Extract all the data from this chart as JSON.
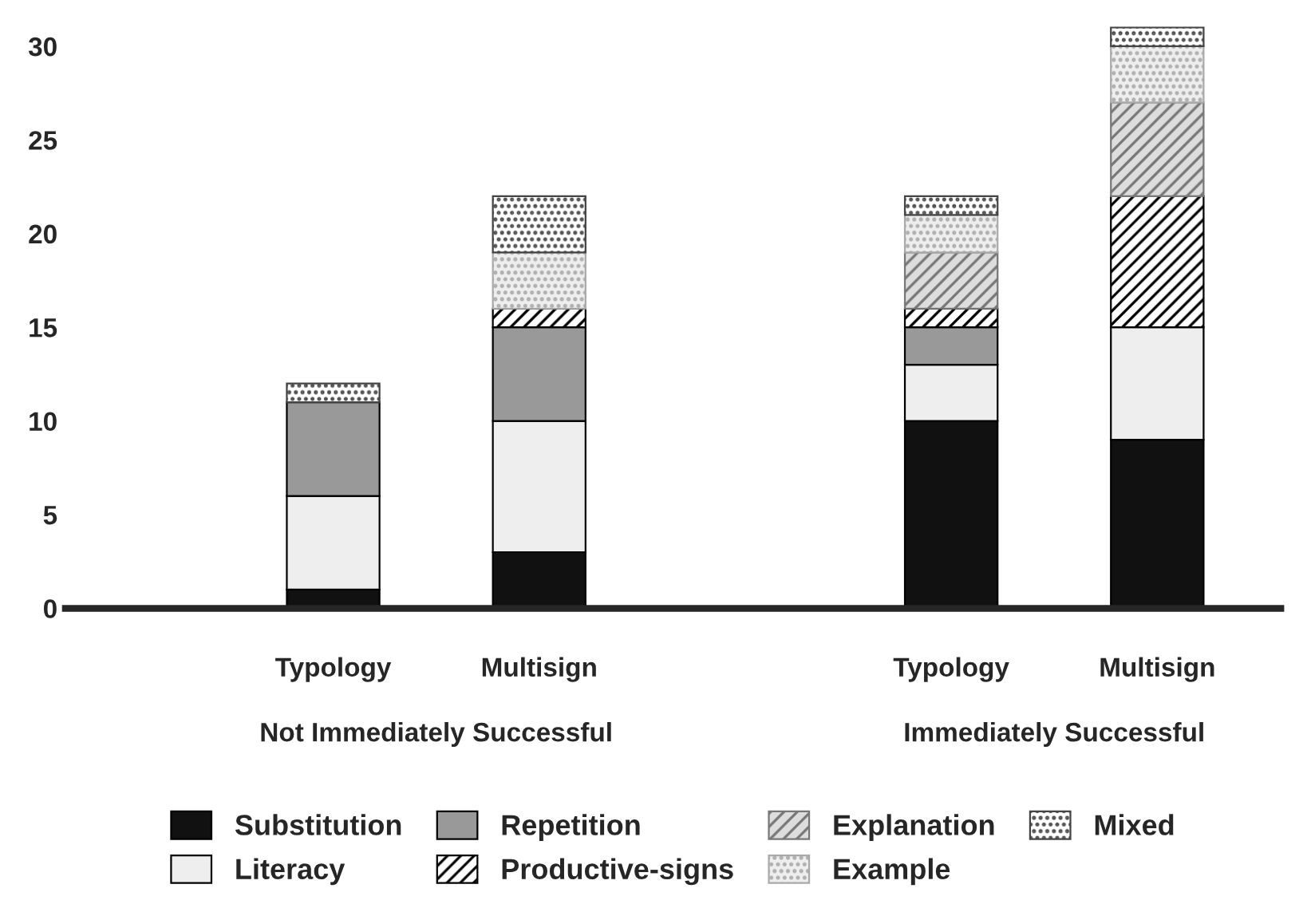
{
  "chart_data": {
    "type": "bar",
    "stacked": true,
    "categories": [
      "Typology",
      "Multisign",
      null,
      "Typology",
      "Multisign"
    ],
    "series": [
      {
        "name": "Substitution",
        "color": "#111111",
        "values": [
          1,
          3,
          null,
          10,
          9
        ]
      },
      {
        "name": "Literacy",
        "color": "#eeeeee",
        "values": [
          5,
          7,
          null,
          3,
          6
        ]
      },
      {
        "name": "Repetition",
        "color": "#999999",
        "values": [
          5,
          5,
          null,
          2,
          0
        ]
      },
      {
        "name": "Productive-signs",
        "color": "#000000",
        "values": [
          0,
          1,
          null,
          1,
          7
        ]
      },
      {
        "name": "Explanation",
        "color": "#777777",
        "values": [
          0,
          0,
          null,
          3,
          5
        ]
      },
      {
        "name": "Example",
        "color": "#aaaaaa",
        "values": [
          0,
          3,
          null,
          2,
          3
        ]
      },
      {
        "name": "Mixed",
        "color": "#444444",
        "values": [
          1,
          3,
          null,
          1,
          1
        ]
      }
    ],
    "ylim": [
      0,
      31.5
    ],
    "yticks": [
      0,
      5,
      10,
      15,
      20,
      25,
      30
    ],
    "annotations": [
      "Not Immediately Successful",
      "Immediately Successful"
    ],
    "grid": false,
    "legend": "bottom"
  }
}
